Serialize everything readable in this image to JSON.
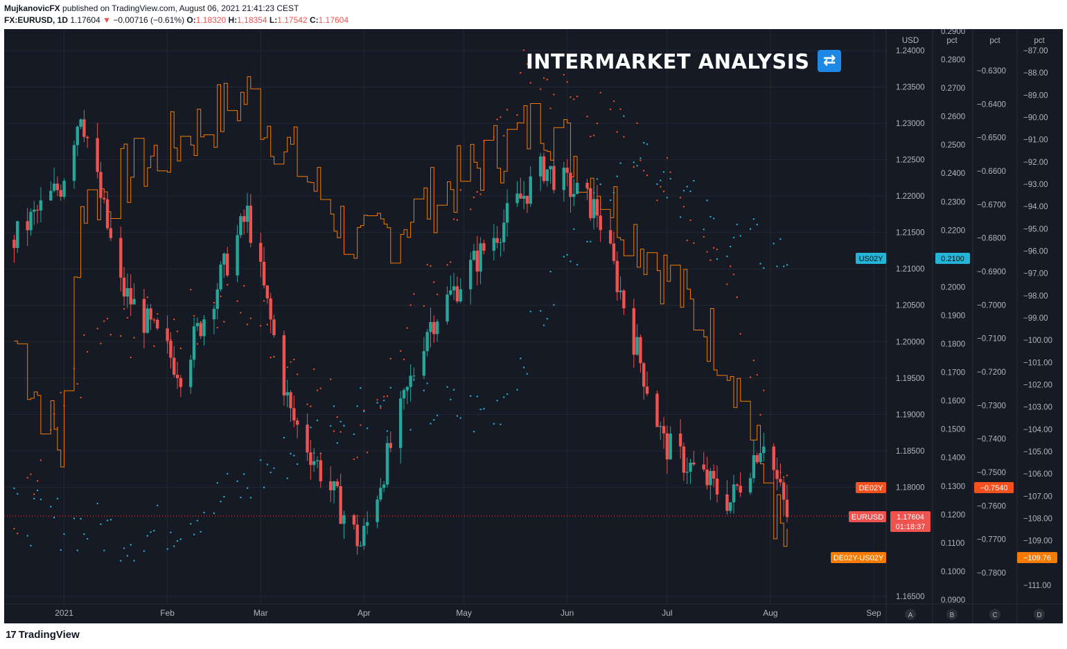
{
  "header": {
    "author": "MujkanovicFX",
    "published_text": "published on TradingView.com, August 06, 2021 21:41:23 CEST",
    "symbol": "FX:EURUSD, 1D",
    "last": "1.17604",
    "change": "−0.00716 (−0.61%)",
    "o_label": "O:",
    "o_val": "1.18320",
    "h_label": "H:",
    "h_val": "1.18354",
    "l_label": "L:",
    "l_val": "1.17542",
    "c_label": "C:",
    "c_val": "1.17604",
    "down_arrow": "▼"
  },
  "banner": {
    "title": "INTERMARKET ANALYSIS",
    "icon": "shuffle-icon"
  },
  "footer": {
    "logo_mark": "17",
    "logo_text": "TradingView"
  },
  "colors": {
    "background": "#161a25",
    "up": "#26a69a",
    "down": "#ef5350",
    "us02y": "#22b5d8",
    "de02y": "#f4511e",
    "spread": "#f57c00",
    "grid": "#232733",
    "text": "#b2b5be"
  },
  "chart_data": {
    "type": "candlestick",
    "symbol": "EURUSD",
    "x_ticks": [
      "2021",
      "Feb",
      "Mar",
      "Apr",
      "May",
      "Jun",
      "Jul",
      "Aug",
      "Sep"
    ],
    "axes": {
      "usd": {
        "unit": "USD",
        "ticks": [
          "1.24000",
          "1.23500",
          "1.23000",
          "1.22500",
          "1.22000",
          "1.21500",
          "1.21000",
          "1.20500",
          "1.20000",
          "1.19500",
          "1.19000",
          "1.18500",
          "1.18000",
          "1.16500"
        ]
      },
      "pct_b": {
        "unit": "pct",
        "ticks": [
          "0.2900",
          "0.2800",
          "0.2700",
          "0.2600",
          "0.2500",
          "0.2400",
          "0.2300",
          "0.2200",
          "0.2000",
          "0.1900",
          "0.1800",
          "0.1700",
          "0.1600",
          "0.1500",
          "0.1400",
          "0.1300",
          "0.1200",
          "0.1100",
          "0.1000",
          "0.0900"
        ]
      },
      "pct_c": {
        "unit": "pct",
        "ticks": [
          "−0.6300",
          "−0.6400",
          "−0.6500",
          "−0.6600",
          "−0.6700",
          "−0.6800",
          "−0.6900",
          "−0.7000",
          "−0.7100",
          "−0.7200",
          "−0.7300",
          "−0.7400",
          "−0.7500",
          "−0.7600",
          "−0.7700",
          "−0.7800"
        ]
      },
      "pct_d": {
        "unit": "pct",
        "ticks": [
          "−87.00",
          "−88.00",
          "−89.00",
          "−90.00",
          "−91.00",
          "−92.00",
          "−93.00",
          "−94.00",
          "−95.00",
          "−96.00",
          "−97.00",
          "−98.00",
          "−99.00",
          "−100.00",
          "−101.00",
          "−102.00",
          "−103.00",
          "−104.00",
          "−105.00",
          "−106.00",
          "−107.00",
          "−108.00",
          "−109.00",
          "−111.00"
        ]
      }
    },
    "pane_labels": [
      "A",
      "B",
      "C",
      "D"
    ],
    "price_labels": {
      "us02y": {
        "name": "US02Y",
        "value": "0.2100"
      },
      "de02y": {
        "name": "DE02Y",
        "value": "−0.7540"
      },
      "eurusd": {
        "name": "EURUSD",
        "value": "1.17604",
        "countdown": "01:18:37"
      },
      "spread": {
        "name": "DE02Y-US02Y",
        "value": "−109.76"
      }
    },
    "eurusd_close_keypoints": [
      [
        "2020-12-17",
        1.214
      ],
      [
        "2020-12-31",
        1.2215
      ],
      [
        "2021-01-06",
        1.232
      ],
      [
        "2021-01-18",
        1.2075
      ],
      [
        "2021-02-05",
        1.196
      ],
      [
        "2021-02-25",
        1.2175
      ],
      [
        "2021-03-10",
        1.19
      ],
      [
        "2021-03-31",
        1.172
      ],
      [
        "2021-04-20",
        1.202
      ],
      [
        "2021-05-25",
        1.224
      ],
      [
        "2021-06-10",
        1.218
      ],
      [
        "2021-06-30",
        1.186
      ],
      [
        "2021-07-20",
        1.178
      ],
      [
        "2021-07-30",
        1.187
      ],
      [
        "2021-08-06",
        1.17604
      ]
    ],
    "us02y_keypoints": [
      [
        "2020-12-17",
        0.12
      ],
      [
        "2021-01-25",
        0.112
      ],
      [
        "2021-02-25",
        0.13
      ],
      [
        "2021-03-31",
        0.16
      ],
      [
        "2021-05-10",
        0.155
      ],
      [
        "2021-06-20",
        0.255
      ],
      [
        "2021-07-15",
        0.22
      ],
      [
        "2021-08-06",
        0.21
      ]
    ],
    "de02y_keypoints": [
      [
        "2020-12-17",
        -0.77
      ],
      [
        "2021-01-10",
        -0.71
      ],
      [
        "2021-02-25",
        -0.7
      ],
      [
        "2021-03-31",
        -0.74
      ],
      [
        "2021-05-20",
        -0.63
      ],
      [
        "2021-06-20",
        -0.65
      ],
      [
        "2021-07-20",
        -0.69
      ],
      [
        "2021-08-06",
        -0.754
      ]
    ],
    "spread_keypoints": [
      [
        "2020-12-17",
        -100.0
      ],
      [
        "2020-12-31",
        -105.0
      ],
      [
        "2021-01-06",
        -94.0
      ],
      [
        "2021-02-25",
        -89.0
      ],
      [
        "2021-03-31",
        -96.0
      ],
      [
        "2021-05-25",
        -90.0
      ],
      [
        "2021-06-20",
        -95.0
      ],
      [
        "2021-07-20",
        -101.0
      ],
      [
        "2021-08-06",
        -109.76
      ]
    ]
  }
}
